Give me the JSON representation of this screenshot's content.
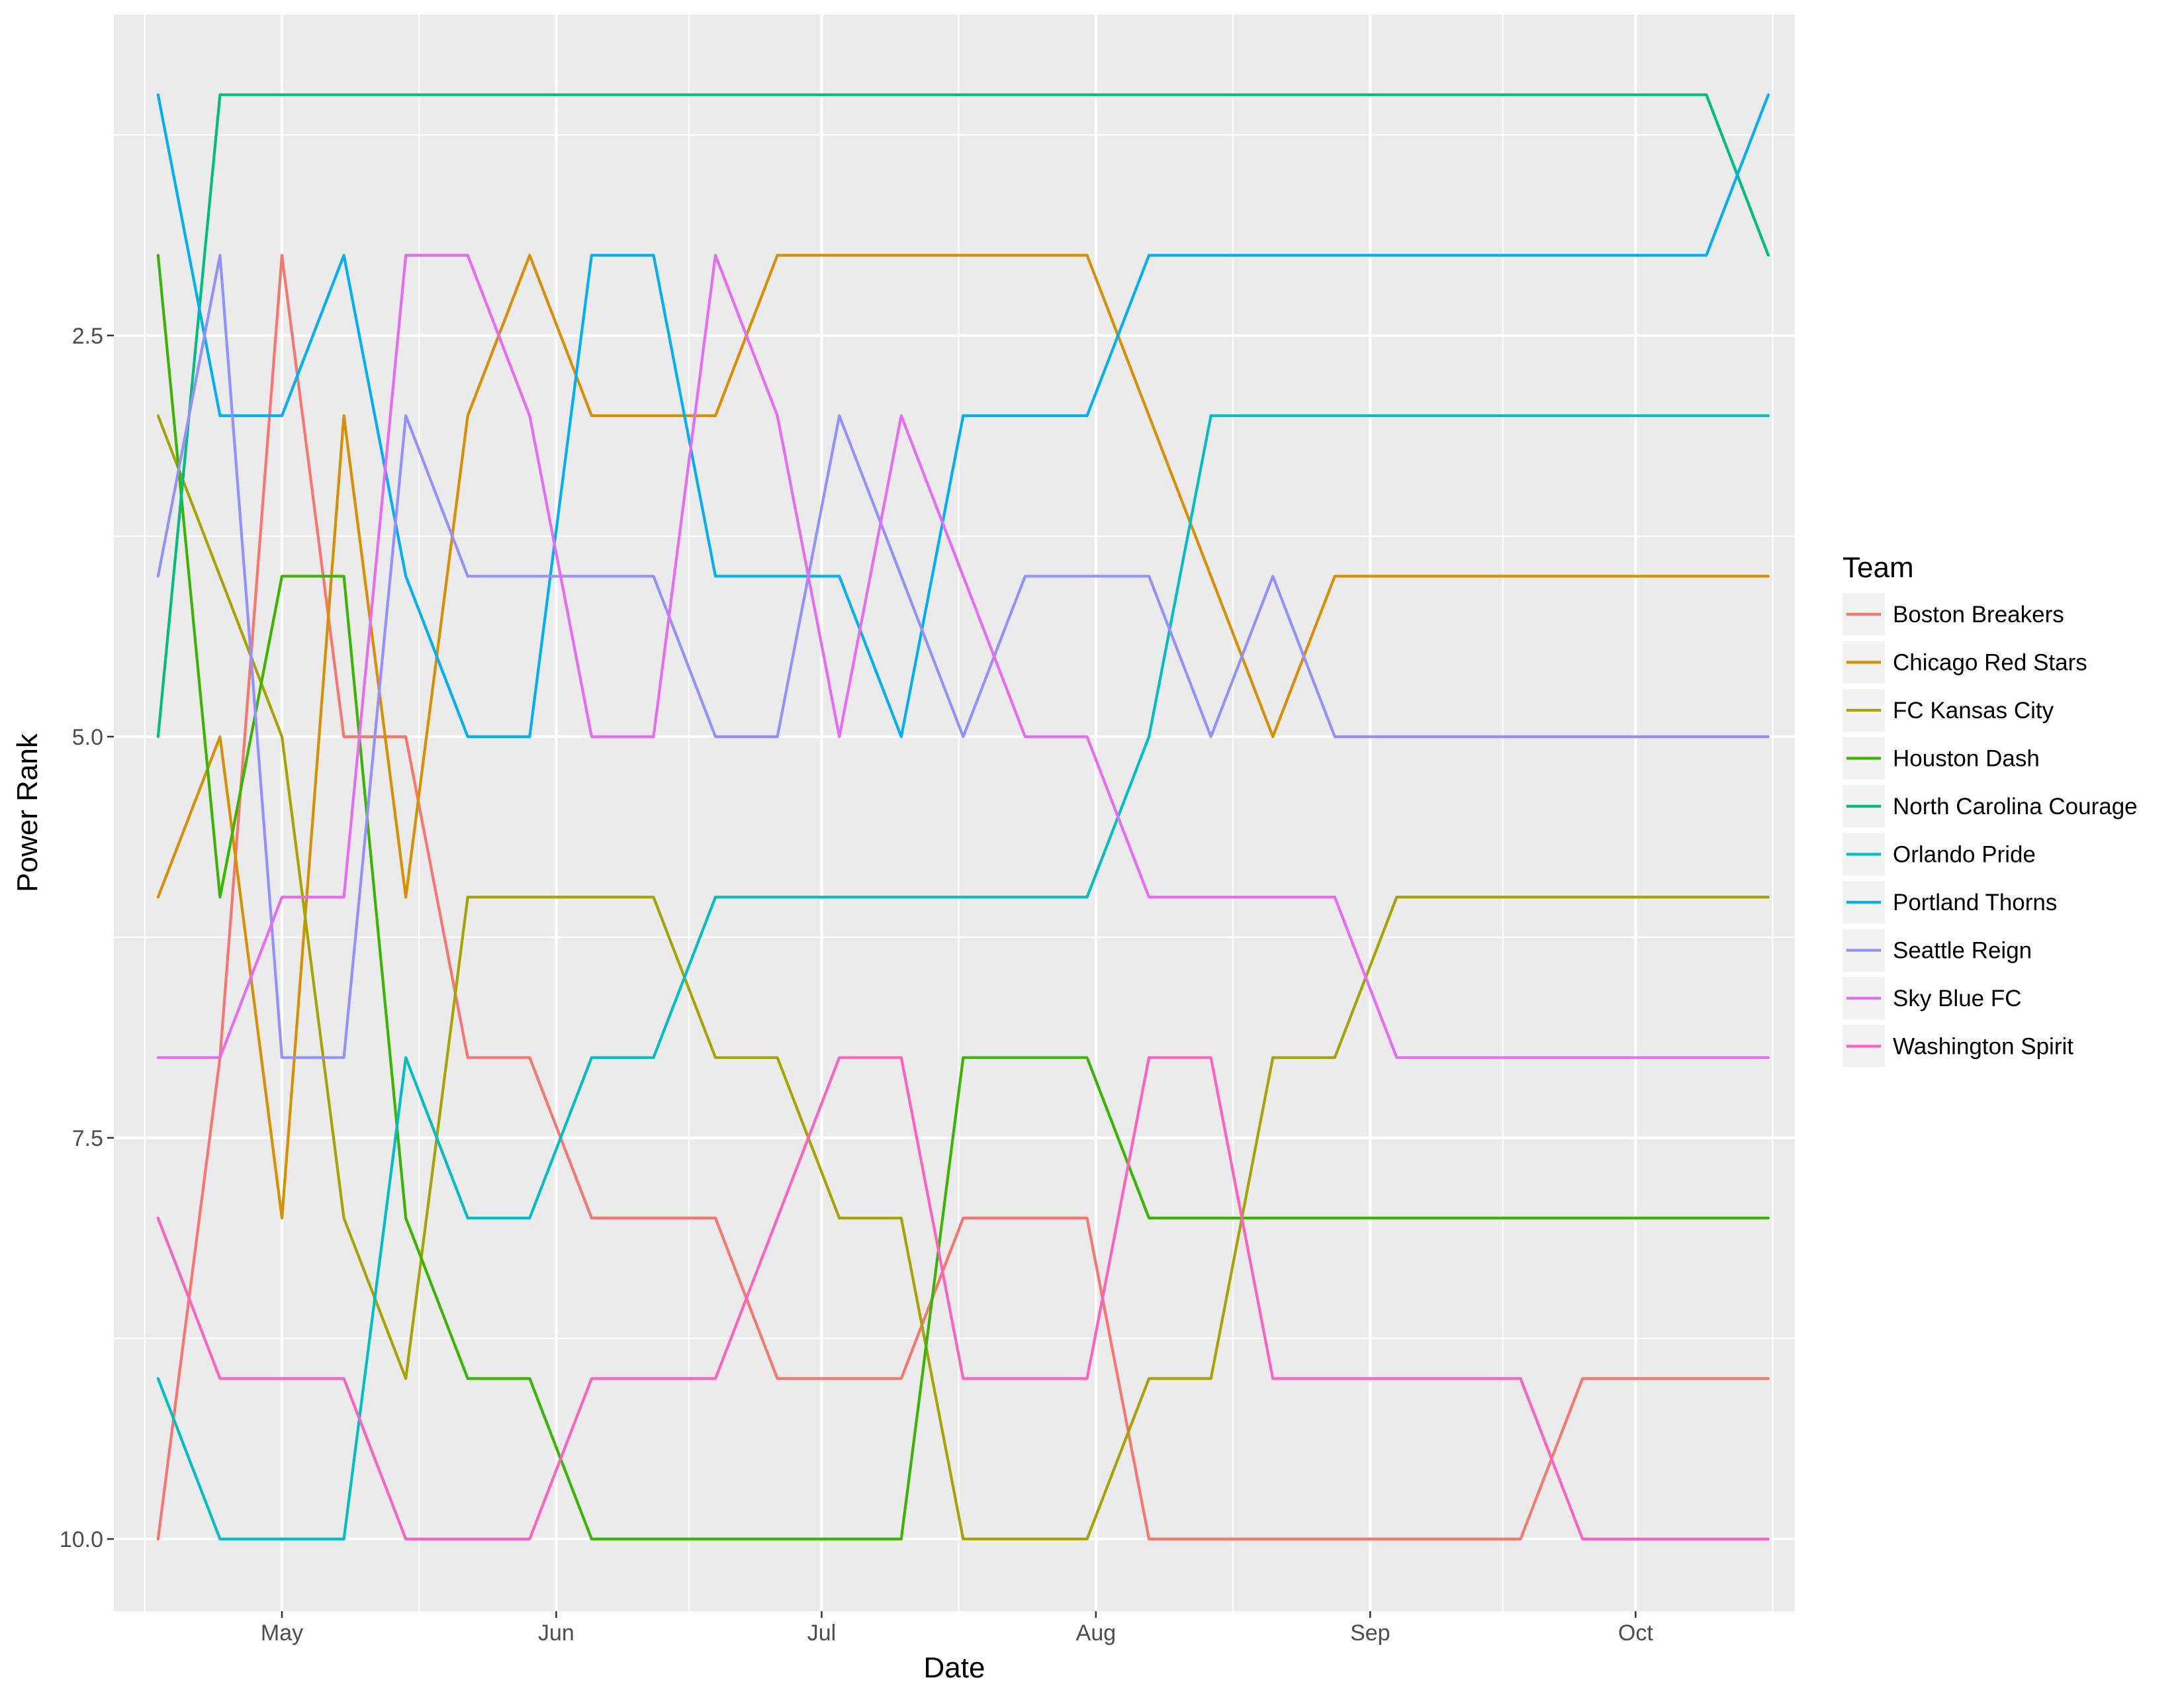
{
  "chart_data": {
    "type": "line",
    "title": "",
    "xlabel": "Date",
    "ylabel": "Power Rank",
    "x_type": "date",
    "y_reversed": true,
    "ylim": [
      0.5,
      10.45
    ],
    "xlim": [
      "2017-04-12",
      "2017-10-19"
    ],
    "y_ticks": [
      2.5,
      5.0,
      7.5,
      10.0
    ],
    "y_tick_labels": [
      "2.5",
      "5.0",
      "7.5",
      "10.0"
    ],
    "x_ticks": [
      "2017-05-01",
      "2017-06-01",
      "2017-07-01",
      "2017-08-01",
      "2017-09-01",
      "2017-10-01"
    ],
    "x_tick_labels": [
      "May",
      "Jun",
      "Jul",
      "Aug",
      "Sep",
      "Oct"
    ],
    "grid": true,
    "legend": {
      "title": "Team",
      "position": "right"
    },
    "x": [
      "2017-04-17",
      "2017-04-24",
      "2017-05-01",
      "2017-05-08",
      "2017-05-15",
      "2017-05-22",
      "2017-05-29",
      "2017-06-05",
      "2017-06-12",
      "2017-06-19",
      "2017-06-26",
      "2017-07-03",
      "2017-07-10",
      "2017-07-17",
      "2017-07-24",
      "2017-07-31",
      "2017-08-07",
      "2017-08-14",
      "2017-08-21",
      "2017-08-28",
      "2017-09-04",
      "2017-09-11",
      "2017-09-18",
      "2017-09-25",
      "2017-10-02",
      "2017-10-09",
      "2017-10-16"
    ],
    "series": [
      {
        "name": "Boston Breakers",
        "color": "#F8766D",
        "values": [
          10,
          7,
          2,
          5,
          5,
          7,
          7,
          8,
          8,
          8,
          9,
          9,
          9,
          8,
          8,
          8,
          10,
          10,
          10,
          10,
          10,
          10,
          10,
          9,
          9,
          9,
          9
        ]
      },
      {
        "name": "Chicago Red Stars",
        "color": "#D89000",
        "values": [
          6,
          5,
          8,
          3,
          6,
          3,
          2,
          3,
          3,
          3,
          2,
          2,
          2,
          2,
          2,
          2,
          3,
          4,
          5,
          4,
          4,
          4,
          4,
          4,
          4,
          4,
          4
        ]
      },
      {
        "name": "FC Kansas City",
        "color": "#A3A500",
        "values": [
          3,
          4,
          5,
          8,
          9,
          6,
          6,
          6,
          6,
          7,
          7,
          8,
          8,
          10,
          10,
          10,
          9,
          9,
          7,
          7,
          6,
          6,
          6,
          6,
          6,
          6,
          6
        ]
      },
      {
        "name": "Houston Dash",
        "color": "#39B600",
        "values": [
          2,
          6,
          4,
          4,
          8,
          9,
          9,
          10,
          10,
          10,
          10,
          10,
          10,
          7,
          7,
          7,
          8,
          8,
          8,
          8,
          8,
          8,
          8,
          8,
          8,
          8,
          8
        ]
      },
      {
        "name": "North Carolina Courage",
        "color": "#00BF7D",
        "values": [
          5,
          1,
          1,
          1,
          1,
          1,
          1,
          1,
          1,
          1,
          1,
          1,
          1,
          1,
          1,
          1,
          1,
          1,
          1,
          1,
          1,
          1,
          1,
          1,
          1,
          1,
          2
        ]
      },
      {
        "name": "Orlando Pride",
        "color": "#00BFC4",
        "values": [
          9,
          10,
          10,
          10,
          7,
          8,
          8,
          7,
          7,
          6,
          6,
          6,
          6,
          6,
          6,
          6,
          5,
          3,
          3,
          3,
          3,
          3,
          3,
          3,
          3,
          3,
          3
        ]
      },
      {
        "name": "Portland Thorns",
        "color": "#00B0F6",
        "values": [
          1,
          3,
          3,
          2,
          4,
          5,
          5,
          2,
          2,
          4,
          4,
          4,
          5,
          3,
          3,
          3,
          2,
          2,
          2,
          2,
          2,
          2,
          2,
          2,
          2,
          2,
          1
        ]
      },
      {
        "name": "Seattle Reign",
        "color": "#9590FF",
        "values": [
          4,
          2,
          7,
          7,
          3,
          4,
          4,
          4,
          4,
          5,
          5,
          3,
          4,
          5,
          4,
          4,
          4,
          5,
          4,
          5,
          5,
          5,
          5,
          5,
          5,
          5,
          5
        ]
      },
      {
        "name": "Sky Blue FC",
        "color": "#E76BF3",
        "values": [
          7,
          7,
          6,
          6,
          2,
          2,
          3,
          5,
          5,
          2,
          3,
          5,
          3,
          4,
          5,
          5,
          6,
          6,
          6,
          6,
          7,
          7,
          7,
          7,
          7,
          7,
          7
        ]
      },
      {
        "name": "Washington Spirit",
        "color": "#FF62BC",
        "values": [
          8,
          9,
          9,
          9,
          10,
          10,
          10,
          9,
          9,
          9,
          8,
          7,
          7,
          9,
          9,
          9,
          7,
          7,
          9,
          9,
          9,
          9,
          9,
          10,
          10,
          10,
          10
        ]
      }
    ]
  }
}
